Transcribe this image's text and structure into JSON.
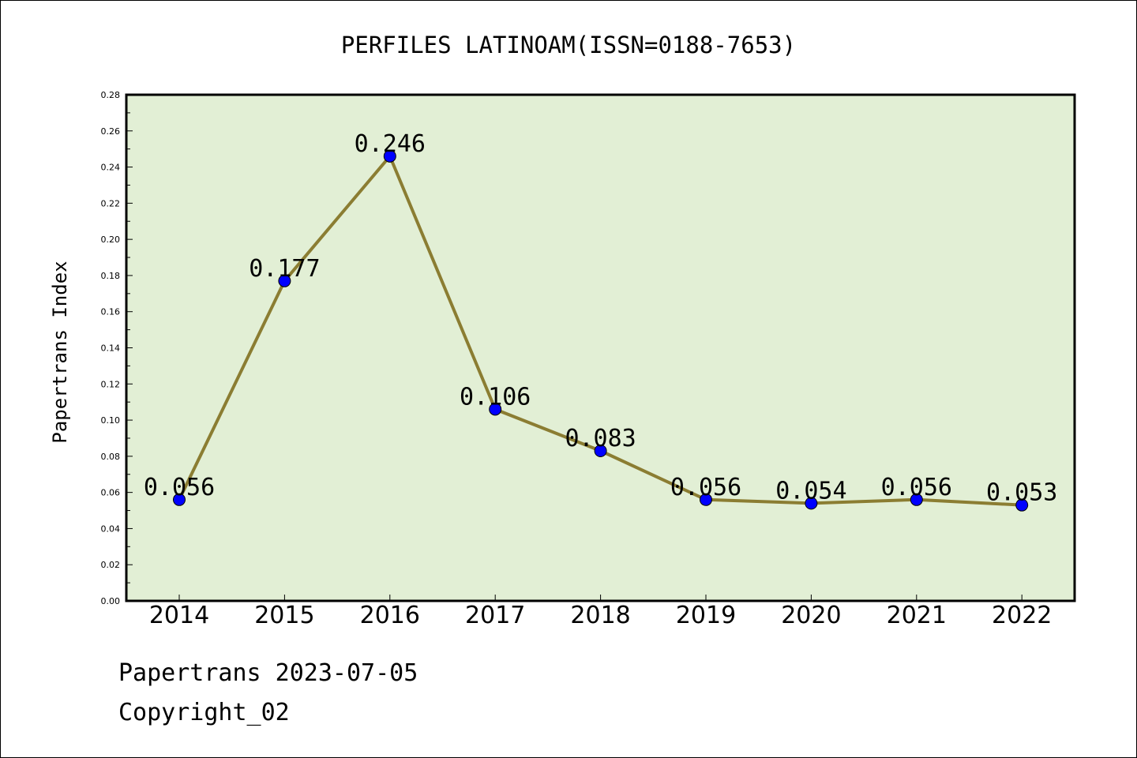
{
  "chart_data": {
    "type": "line",
    "title": "PERFILES LATINOAM(ISSN=0188-7653)",
    "xlabel": "",
    "ylabel": "Papertrans Index",
    "categories": [
      "2014",
      "2015",
      "2016",
      "2017",
      "2018",
      "2019",
      "2020",
      "2021",
      "2022"
    ],
    "series": [
      {
        "values": [
          0.056,
          0.177,
          0.246,
          0.106,
          0.083,
          0.056,
          0.054,
          0.056,
          0.053
        ],
        "data_labels": [
          "0.056",
          "0.177",
          "0.246",
          "0.106",
          "0.083",
          "0.056",
          "0.054",
          "0.056",
          "0.053"
        ]
      }
    ],
    "ylim": [
      0,
      0.28
    ],
    "yticks": [
      "0.00",
      "0.02",
      "0.04",
      "0.06",
      "0.08",
      "0.10",
      "0.12",
      "0.14",
      "0.16",
      "0.18",
      "0.20",
      "0.22",
      "0.24",
      "0.26",
      "0.28"
    ],
    "grid": false,
    "legend": "none",
    "colors": {
      "plot_background": "#e2efd5",
      "line": "#8b7d32",
      "marker": "#0000ff"
    }
  },
  "footer": {
    "line1": "Papertrans 2023-07-05",
    "line2": "Copyright_02"
  }
}
